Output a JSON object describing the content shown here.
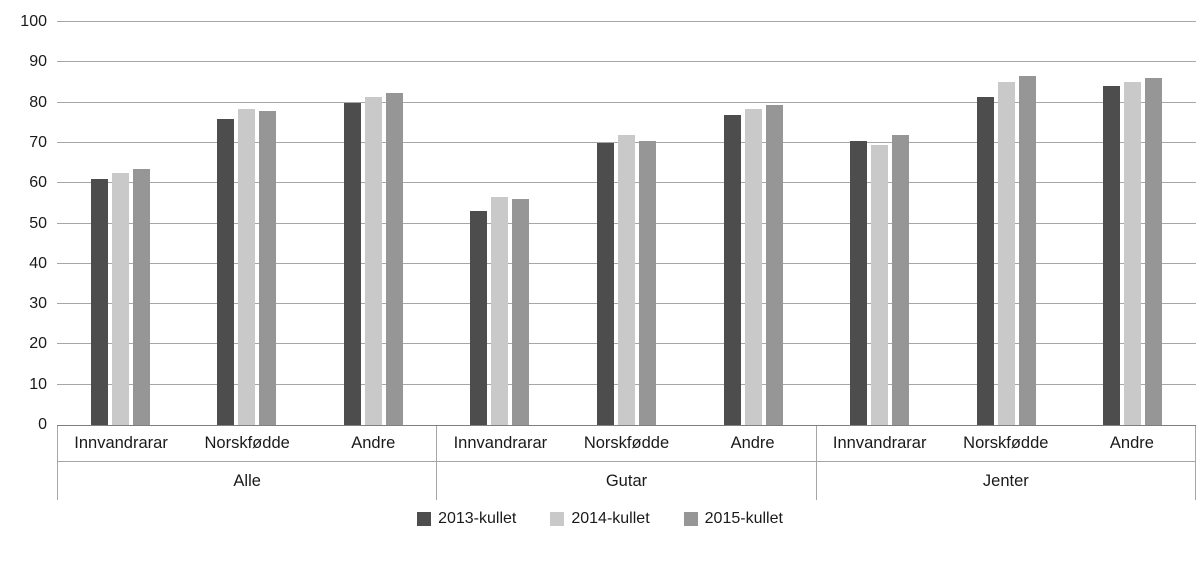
{
  "chart_data": {
    "type": "bar",
    "title": "",
    "xlabel": "",
    "ylabel": "",
    "ylim": [
      0,
      100
    ],
    "ytick_step": 10,
    "grid": true,
    "legend_position": "bottom",
    "groups": [
      {
        "label": "Alle",
        "categories": [
          "Innvandrarar",
          "Norskfødde",
          "Andre"
        ]
      },
      {
        "label": "Gutar",
        "categories": [
          "Innvandrarar",
          "Norskfødde",
          "Andre"
        ]
      },
      {
        "label": "Jenter",
        "categories": [
          "Innvandrarar",
          "Norskfødde",
          "Andre"
        ]
      }
    ],
    "series": [
      {
        "name": "2013-kullet",
        "color": "#4d4d4d",
        "values": [
          [
            61,
            76,
            80
          ],
          [
            53,
            70,
            77
          ],
          [
            70.5,
            81.5,
            84
          ]
        ]
      },
      {
        "name": "2014-kullet",
        "color": "#c9c9c9",
        "values": [
          [
            62.5,
            78.5,
            81.5
          ],
          [
            56.5,
            72,
            78.5
          ],
          [
            69.5,
            85,
            85
          ]
        ]
      },
      {
        "name": "2015-kullet",
        "color": "#969696",
        "values": [
          [
            63.5,
            78,
            82.5
          ],
          [
            56,
            70.5,
            79.5
          ],
          [
            72,
            86.5,
            86
          ]
        ]
      }
    ]
  },
  "axis": {
    "y_ticks": [
      "0",
      "10",
      "20",
      "30",
      "40",
      "50",
      "60",
      "70",
      "80",
      "90",
      "100"
    ]
  },
  "colors": {
    "background": "#ffffff",
    "gridline": "#a6a6a6",
    "axis_line": "#7f7f7f",
    "text": "#1a1a1a"
  }
}
